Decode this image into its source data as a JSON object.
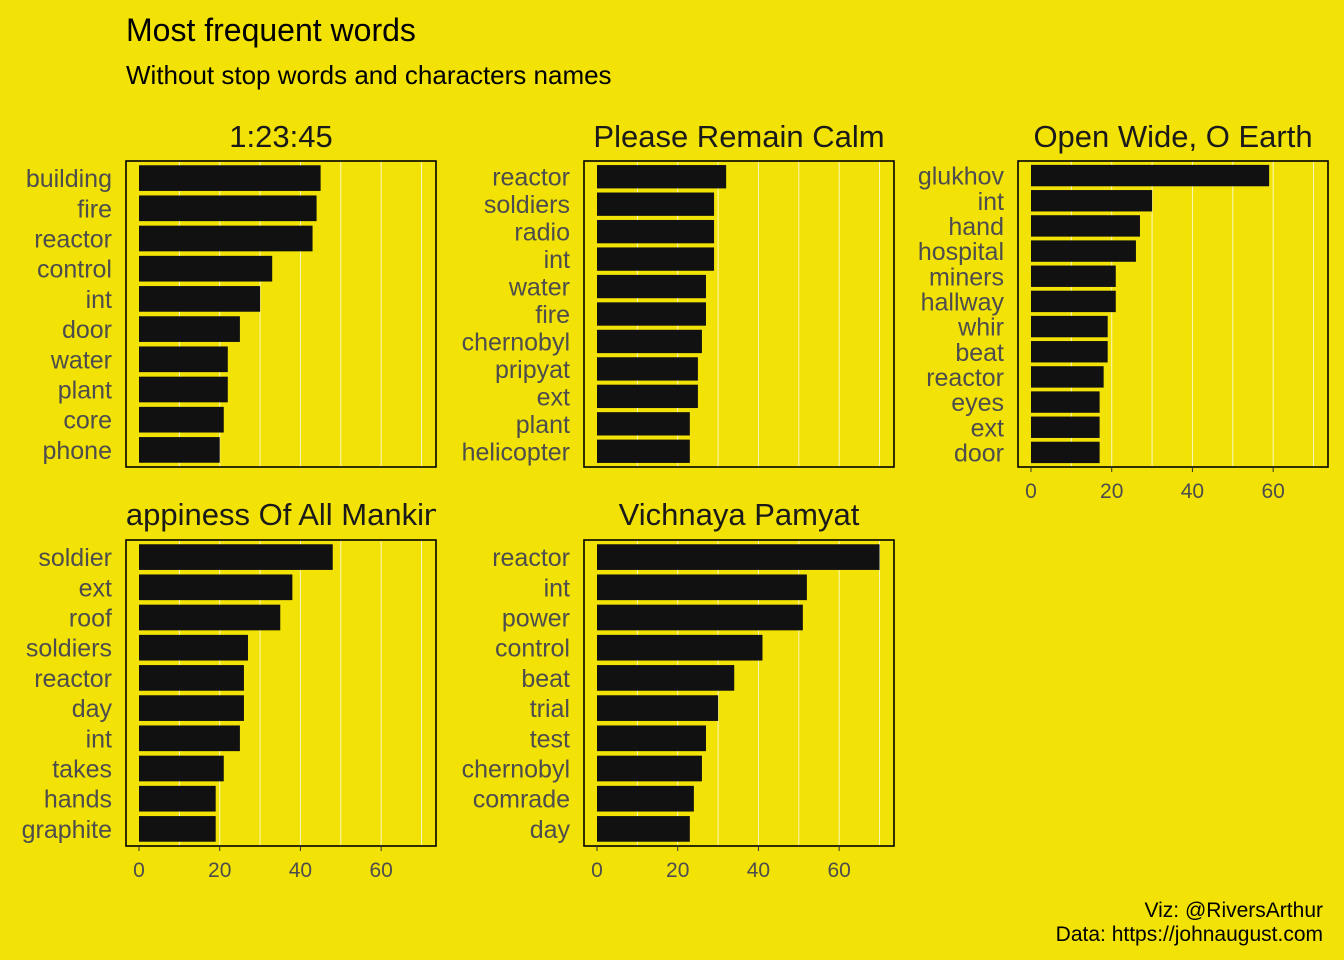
{
  "title": "Most frequent words",
  "subtitle": "Without stop words and characters names",
  "caption": [
    "Viz: @RiversArthur",
    "Data: https://johnaugust.com"
  ],
  "colors": {
    "background": "#f2e205",
    "bar": "#111111",
    "grid": "#ffffff",
    "text": "#4d4d4d"
  },
  "chart_data": [
    {
      "type": "bar",
      "orientation": "horizontal",
      "title": "1:23:45",
      "categories": [
        "building",
        "fire",
        "reactor",
        "control",
        "int",
        "door",
        "water",
        "plant",
        "core",
        "phone"
      ],
      "values": [
        45,
        44,
        43,
        33,
        30,
        25,
        22,
        22,
        21,
        20
      ],
      "xlim": [
        0,
        70
      ],
      "xticks": [
        0,
        20,
        40,
        60
      ]
    },
    {
      "type": "bar",
      "orientation": "horizontal",
      "title": "Please Remain Calm",
      "categories": [
        "reactor",
        "soldiers",
        "radio",
        "int",
        "water",
        "fire",
        "chernobyl",
        "pripyat",
        "ext",
        "plant",
        "helicopter"
      ],
      "values": [
        32,
        29,
        29,
        29,
        27,
        27,
        26,
        25,
        25,
        23,
        23
      ],
      "xlim": [
        0,
        70
      ],
      "xticks": [
        0,
        20,
        40,
        60
      ]
    },
    {
      "type": "bar",
      "orientation": "horizontal",
      "title": "Open Wide, O Earth",
      "categories": [
        "glukhov",
        "int",
        "hand",
        "hospital",
        "miners",
        "hallway",
        "whir",
        "beat",
        "reactor",
        "eyes",
        "ext",
        "door"
      ],
      "values": [
        59,
        30,
        27,
        26,
        21,
        21,
        19,
        19,
        18,
        17,
        17,
        17
      ],
      "xlim": [
        0,
        70
      ],
      "xticks": [
        0,
        20,
        40,
        60
      ]
    },
    {
      "type": "bar",
      "orientation": "horizontal",
      "title": "Happiness Of All Mankind",
      "categories": [
        "soldier",
        "ext",
        "roof",
        "soldiers",
        "reactor",
        "day",
        "int",
        "takes",
        "hands",
        "graphite"
      ],
      "values": [
        48,
        38,
        35,
        27,
        26,
        26,
        25,
        21,
        19,
        19
      ],
      "xlim": [
        0,
        70
      ],
      "xticks": [
        0,
        20,
        40,
        60
      ]
    },
    {
      "type": "bar",
      "orientation": "horizontal",
      "title": "Vichnaya Pamyat",
      "categories": [
        "reactor",
        "int",
        "power",
        "control",
        "beat",
        "trial",
        "test",
        "chernobyl",
        "comrade",
        "day"
      ],
      "values": [
        70,
        52,
        51,
        41,
        34,
        30,
        27,
        26,
        24,
        23
      ],
      "xlim": [
        0,
        70
      ],
      "xticks": [
        0,
        20,
        40,
        60
      ]
    }
  ]
}
